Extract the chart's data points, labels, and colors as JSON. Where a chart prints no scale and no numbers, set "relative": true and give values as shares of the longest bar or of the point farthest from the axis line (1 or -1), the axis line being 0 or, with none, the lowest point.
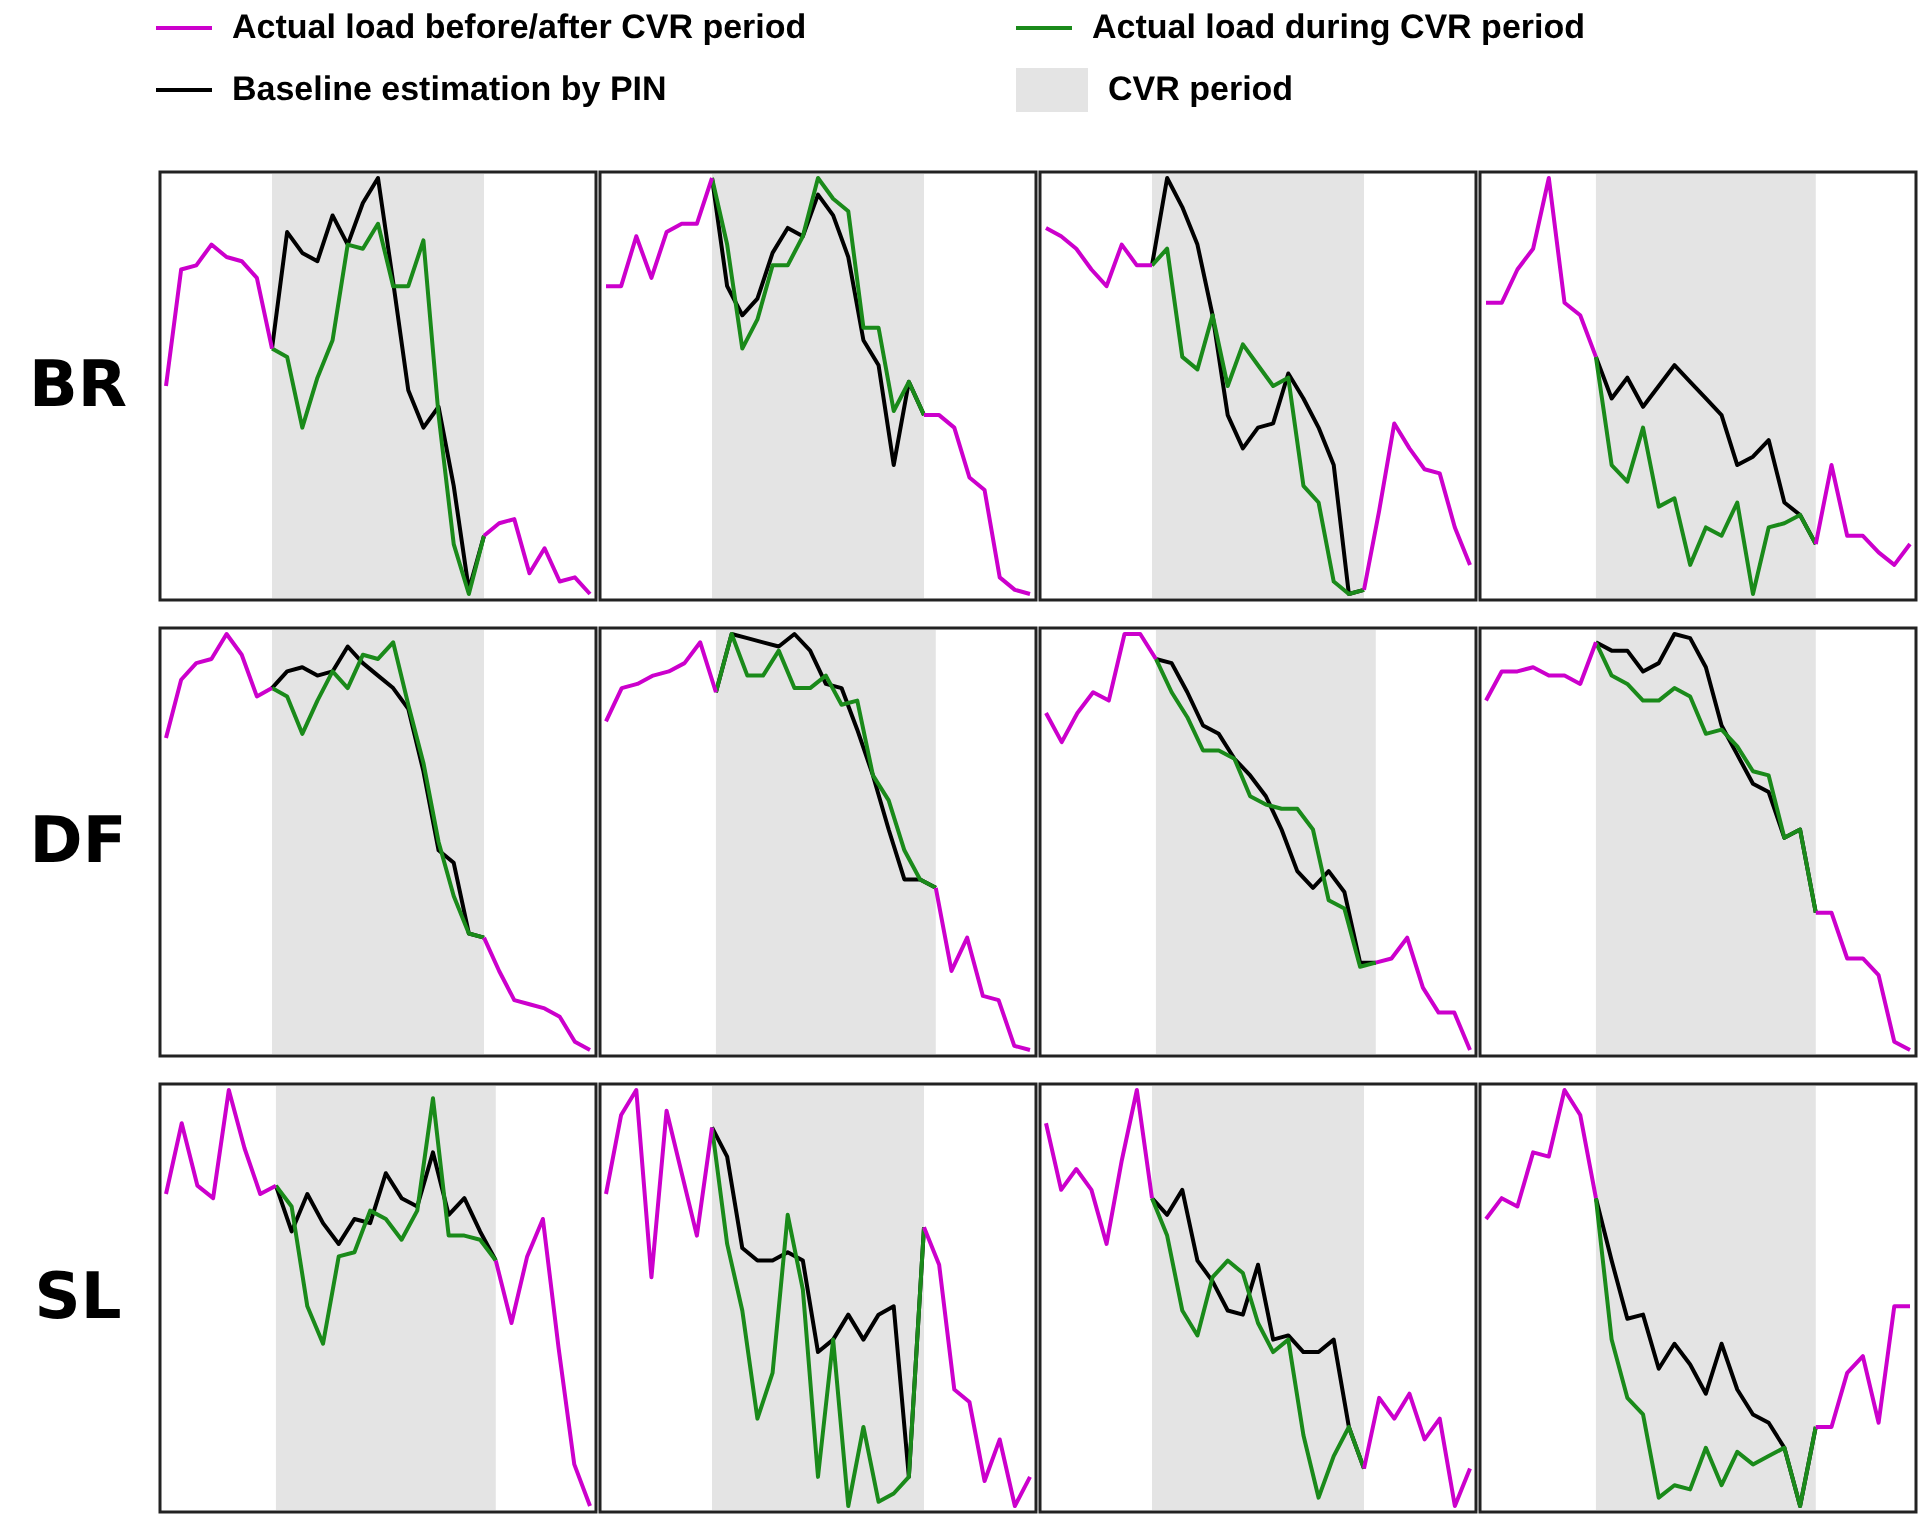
{
  "chart_data": [
    {
      "type": "line",
      "relative": true,
      "tick_labels": false,
      "marker": "none",
      "legend": "top",
      "ylabel": "BR",
      "annotations": [
        "CVR period"
      ],
      "categories": [
        null,
        null,
        null,
        null,
        null,
        null,
        null,
        null,
        null,
        null,
        null,
        null,
        null,
        null,
        null,
        null,
        null,
        null,
        null,
        null,
        null,
        null,
        null,
        null,
        null,
        null,
        null,
        null,
        null
      ],
      "series": [
        {
          "name": "Actual load before/after CVR period",
          "color": "#cc00cc",
          "values": [
            0.5,
            0.78,
            0.79,
            0.84,
            0.81,
            0.8,
            0.76,
            0.59,
            null,
            null,
            null,
            null,
            null,
            null,
            null,
            null,
            null,
            null,
            null,
            null,
            null,
            0.14,
            0.17,
            0.18,
            0.05,
            0.11,
            0.03,
            0.04,
            0
          ]
        },
        {
          "name": "Actual load during CVR period",
          "color": "#1a8a1a",
          "values": [
            null,
            null,
            null,
            null,
            null,
            null,
            null,
            0.59,
            0.57,
            0.4,
            0.52,
            0.61,
            0.84,
            0.83,
            0.89,
            0.74,
            0.74,
            0.85,
            0.43,
            0.12,
            0,
            0.14,
            null,
            null,
            null,
            null,
            null,
            null,
            null
          ]
        },
        {
          "name": "Baseline estimation by PIN",
          "color": "#000000",
          "values": [
            null,
            null,
            null,
            null,
            null,
            null,
            null,
            0.59,
            0.87,
            0.82,
            0.8,
            0.91,
            0.84,
            0.94,
            1,
            0.75,
            0.49,
            0.4,
            0.45,
            0.26,
            0.01,
            0.14,
            null,
            null,
            null,
            null,
            null,
            null,
            null
          ]
        }
      ]
    },
    {
      "type": "line",
      "relative": true,
      "tick_labels": false,
      "marker": "none",
      "categories": [
        null,
        null,
        null,
        null,
        null,
        null,
        null,
        null,
        null,
        null,
        null,
        null,
        null,
        null,
        null,
        null,
        null,
        null,
        null,
        null,
        null,
        null,
        null,
        null,
        null,
        null,
        null,
        null,
        null
      ],
      "series": [
        {
          "color": "#cc00cc",
          "values": [
            0.74,
            0.74,
            0.86,
            0.76,
            0.87,
            0.89,
            0.89,
            1,
            null,
            null,
            null,
            null,
            null,
            null,
            null,
            null,
            null,
            null,
            null,
            null,
            null,
            0.43,
            0.43,
            0.4,
            0.28,
            0.25,
            0.04,
            0.01,
            0
          ]
        },
        {
          "color": "#1a8a1a",
          "values": [
            null,
            null,
            null,
            null,
            null,
            null,
            null,
            1,
            0.84,
            0.59,
            0.66,
            0.79,
            0.79,
            0.86,
            1,
            0.95,
            0.92,
            0.64,
            0.64,
            0.44,
            0.51,
            0.43,
            null,
            null,
            null,
            null,
            null,
            null,
            null
          ]
        },
        {
          "color": "#000000",
          "values": [
            null,
            null,
            null,
            null,
            null,
            null,
            null,
            1,
            0.74,
            0.67,
            0.71,
            0.82,
            0.88,
            0.86,
            0.96,
            0.91,
            0.81,
            0.61,
            0.55,
            0.31,
            0.51,
            0.43,
            null,
            null,
            null,
            null,
            null,
            null,
            null
          ]
        }
      ]
    },
    {
      "type": "line",
      "relative": true,
      "tick_labels": false,
      "marker": "none",
      "categories": [
        null,
        null,
        null,
        null,
        null,
        null,
        null,
        null,
        null,
        null,
        null,
        null,
        null,
        null,
        null,
        null,
        null,
        null,
        null,
        null,
        null,
        null,
        null,
        null,
        null,
        null,
        null,
        null,
        null
      ],
      "series": [
        {
          "color": "#cc00cc",
          "values": [
            0.88,
            0.86,
            0.83,
            0.78,
            0.74,
            0.84,
            0.79,
            0.79,
            null,
            null,
            null,
            null,
            null,
            null,
            null,
            null,
            null,
            null,
            null,
            null,
            null,
            0.01,
            0.2,
            0.41,
            0.35,
            0.3,
            0.29,
            0.16,
            0.07
          ]
        },
        {
          "color": "#1a8a1a",
          "values": [
            null,
            null,
            null,
            null,
            null,
            null,
            null,
            0.79,
            0.83,
            0.57,
            0.54,
            0.67,
            0.5,
            0.6,
            0.55,
            0.5,
            0.52,
            0.26,
            0.22,
            0.03,
            0,
            0.01,
            null,
            null,
            null,
            null,
            null,
            null,
            null
          ]
        },
        {
          "color": "#000000",
          "values": [
            null,
            null,
            null,
            null,
            null,
            null,
            null,
            0.79,
            1,
            0.93,
            0.84,
            0.67,
            0.43,
            0.35,
            0.4,
            0.41,
            0.53,
            0.47,
            0.4,
            0.31,
            0,
            0.01,
            null,
            null,
            null,
            null,
            null,
            null,
            null
          ]
        }
      ]
    },
    {
      "type": "line",
      "relative": true,
      "tick_labels": false,
      "marker": "none",
      "categories": [
        null,
        null,
        null,
        null,
        null,
        null,
        null,
        null,
        null,
        null,
        null,
        null,
        null,
        null,
        null,
        null,
        null,
        null,
        null,
        null,
        null,
        null,
        null,
        null,
        null,
        null,
        null,
        null
      ],
      "series": [
        {
          "color": "#cc00cc",
          "values": [
            0.7,
            0.7,
            0.78,
            0.83,
            1,
            0.7,
            0.67,
            0.57,
            null,
            null,
            null,
            null,
            null,
            null,
            null,
            null,
            null,
            null,
            null,
            null,
            null,
            0.12,
            0.31,
            0.14,
            0.14,
            0.1,
            0.07,
            0.12
          ]
        },
        {
          "color": "#1a8a1a",
          "values": [
            null,
            null,
            null,
            null,
            null,
            null,
            null,
            0.57,
            0.31,
            0.27,
            0.4,
            0.21,
            0.23,
            0.07,
            0.16,
            0.14,
            0.22,
            0,
            0.16,
            0.17,
            0.19,
            0.12,
            null,
            null,
            null,
            null,
            null,
            null
          ]
        },
        {
          "color": "#000000",
          "values": [
            null,
            null,
            null,
            null,
            null,
            null,
            null,
            0.57,
            0.47,
            0.52,
            0.45,
            0.5,
            0.55,
            0.51,
            0.47,
            0.43,
            0.31,
            0.33,
            0.37,
            0.22,
            0.19,
            0.12,
            null,
            null,
            null,
            null,
            null,
            null
          ]
        }
      ]
    },
    {
      "type": "line",
      "relative": true,
      "tick_labels": false,
      "marker": "none",
      "ylabel": "DF",
      "categories": [
        null,
        null,
        null,
        null,
        null,
        null,
        null,
        null,
        null,
        null,
        null,
        null,
        null,
        null,
        null,
        null,
        null,
        null,
        null,
        null,
        null,
        null,
        null,
        null,
        null,
        null,
        null,
        null,
        null
      ],
      "series": [
        {
          "color": "#cc00cc",
          "values": [
            0.75,
            0.89,
            0.93,
            0.94,
            1,
            0.95,
            0.85,
            0.87,
            null,
            null,
            null,
            null,
            null,
            null,
            null,
            null,
            null,
            null,
            null,
            null,
            null,
            0.27,
            0.19,
            0.12,
            0.11,
            0.1,
            0.08,
            0.02,
            0
          ]
        },
        {
          "color": "#1a8a1a",
          "values": [
            null,
            null,
            null,
            null,
            null,
            null,
            null,
            0.87,
            0.85,
            0.76,
            0.84,
            0.91,
            0.87,
            0.95,
            0.94,
            0.98,
            0.83,
            0.69,
            0.5,
            0.37,
            0.28,
            0.27,
            null,
            null,
            null,
            null,
            null,
            null,
            null
          ]
        },
        {
          "color": "#000000",
          "values": [
            null,
            null,
            null,
            null,
            null,
            null,
            null,
            0.87,
            0.91,
            0.92,
            0.9,
            0.91,
            0.97,
            0.93,
            0.9,
            0.87,
            0.82,
            0.67,
            0.48,
            0.45,
            0.28,
            0.27,
            null,
            null,
            null,
            null,
            null,
            null,
            null
          ]
        }
      ]
    },
    {
      "type": "line",
      "relative": true,
      "tick_labels": false,
      "marker": "none",
      "categories": [
        null,
        null,
        null,
        null,
        null,
        null,
        null,
        null,
        null,
        null,
        null,
        null,
        null,
        null,
        null,
        null,
        null,
        null,
        null,
        null,
        null,
        null,
        null,
        null,
        null,
        null,
        null,
        null
      ],
      "series": [
        {
          "color": "#cc00cc",
          "values": [
            0.79,
            0.87,
            0.88,
            0.9,
            0.91,
            0.93,
            0.98,
            0.86,
            null,
            null,
            null,
            null,
            null,
            null,
            null,
            null,
            null,
            null,
            null,
            null,
            null,
            0.39,
            0.19,
            0.27,
            0.13,
            0.12,
            0.01,
            0
          ]
        },
        {
          "color": "#1a8a1a",
          "values": [
            null,
            null,
            null,
            null,
            null,
            null,
            null,
            0.86,
            1,
            0.9,
            0.9,
            0.96,
            0.87,
            0.87,
            0.9,
            0.83,
            0.84,
            0.66,
            0.6,
            0.48,
            0.41,
            0.39,
            null,
            null,
            null,
            null,
            null,
            null
          ]
        },
        {
          "color": "#000000",
          "values": [
            null,
            null,
            null,
            null,
            null,
            null,
            null,
            0.86,
            1,
            0.99,
            0.98,
            0.97,
            1,
            0.96,
            0.88,
            0.87,
            0.77,
            0.66,
            0.53,
            0.41,
            0.41,
            0.39,
            null,
            null,
            null,
            null,
            null,
            null
          ]
        }
      ]
    },
    {
      "type": "line",
      "relative": true,
      "tick_labels": false,
      "marker": "none",
      "categories": [
        null,
        null,
        null,
        null,
        null,
        null,
        null,
        null,
        null,
        null,
        null,
        null,
        null,
        null,
        null,
        null,
        null,
        null,
        null,
        null,
        null,
        null,
        null,
        null,
        null,
        null,
        null,
        null
      ],
      "series": [
        {
          "color": "#cc00cc",
          "values": [
            0.81,
            0.74,
            0.81,
            0.86,
            0.84,
            1,
            1,
            0.94,
            null,
            null,
            null,
            null,
            null,
            null,
            null,
            null,
            null,
            null,
            null,
            null,
            null,
            0.21,
            0.22,
            0.27,
            0.15,
            0.09,
            0.09,
            0
          ]
        },
        {
          "color": "#1a8a1a",
          "values": [
            null,
            null,
            null,
            null,
            null,
            null,
            null,
            0.94,
            0.86,
            0.8,
            0.72,
            0.72,
            0.7,
            0.61,
            0.59,
            0.58,
            0.58,
            0.53,
            0.36,
            0.34,
            0.2,
            0.21,
            null,
            null,
            null,
            null,
            null,
            null
          ]
        },
        {
          "color": "#000000",
          "values": [
            null,
            null,
            null,
            null,
            null,
            null,
            null,
            0.94,
            0.93,
            0.86,
            0.78,
            0.76,
            0.7,
            0.66,
            0.61,
            0.53,
            0.43,
            0.39,
            0.43,
            0.38,
            0.21,
            0.21,
            null,
            null,
            null,
            null,
            null,
            null
          ]
        }
      ]
    },
    {
      "type": "line",
      "relative": true,
      "tick_labels": false,
      "marker": "none",
      "categories": [
        null,
        null,
        null,
        null,
        null,
        null,
        null,
        null,
        null,
        null,
        null,
        null,
        null,
        null,
        null,
        null,
        null,
        null,
        null,
        null,
        null,
        null,
        null,
        null,
        null,
        null,
        null,
        null
      ],
      "series": [
        {
          "color": "#cc00cc",
          "values": [
            0.84,
            0.91,
            0.91,
            0.92,
            0.9,
            0.9,
            0.88,
            0.98,
            null,
            null,
            null,
            null,
            null,
            null,
            null,
            null,
            null,
            null,
            null,
            null,
            null,
            0.33,
            0.33,
            0.22,
            0.22,
            0.18,
            0.02,
            0
          ]
        },
        {
          "color": "#1a8a1a",
          "values": [
            null,
            null,
            null,
            null,
            null,
            null,
            null,
            0.98,
            0.9,
            0.88,
            0.84,
            0.84,
            0.87,
            0.85,
            0.76,
            0.77,
            0.73,
            0.67,
            0.66,
            0.51,
            0.53,
            0.33,
            null,
            null,
            null,
            null,
            null,
            null
          ]
        },
        {
          "color": "#000000",
          "values": [
            null,
            null,
            null,
            null,
            null,
            null,
            null,
            0.98,
            0.96,
            0.96,
            0.91,
            0.93,
            1,
            0.99,
            0.92,
            0.78,
            0.71,
            0.64,
            0.62,
            0.51,
            0.53,
            0.33,
            null,
            null,
            null,
            null,
            null,
            null
          ]
        }
      ]
    },
    {
      "type": "line",
      "relative": true,
      "tick_labels": false,
      "marker": "none",
      "ylabel": "SL",
      "categories": [
        null,
        null,
        null,
        null,
        null,
        null,
        null,
        null,
        null,
        null,
        null,
        null,
        null,
        null,
        null,
        null,
        null,
        null,
        null,
        null,
        null,
        null,
        null,
        null,
        null,
        null,
        null,
        null
      ],
      "series": [
        {
          "color": "#cc00cc",
          "values": [
            0.75,
            0.92,
            0.77,
            0.74,
            1,
            0.86,
            0.75,
            0.77,
            null,
            null,
            null,
            null,
            null,
            null,
            null,
            null,
            null,
            null,
            null,
            null,
            null,
            0.59,
            0.44,
            0.6,
            0.69,
            0.38,
            0.1,
            0
          ]
        },
        {
          "color": "#1a8a1a",
          "values": [
            null,
            null,
            null,
            null,
            null,
            null,
            null,
            0.77,
            0.72,
            0.48,
            0.39,
            0.6,
            0.61,
            0.71,
            0.69,
            0.64,
            0.71,
            0.98,
            0.65,
            0.65,
            0.64,
            0.59,
            null,
            null,
            null,
            null,
            null,
            null
          ]
        },
        {
          "color": "#000000",
          "values": [
            null,
            null,
            null,
            null,
            null,
            null,
            null,
            0.77,
            0.66,
            0.75,
            0.68,
            0.63,
            0.69,
            0.68,
            0.8,
            0.74,
            0.72,
            0.85,
            0.7,
            0.74,
            0.66,
            0.59,
            null,
            null,
            null,
            null,
            null,
            null
          ]
        }
      ]
    },
    {
      "type": "line",
      "relative": true,
      "tick_labels": false,
      "marker": "none",
      "categories": [
        null,
        null,
        null,
        null,
        null,
        null,
        null,
        null,
        null,
        null,
        null,
        null,
        null,
        null,
        null,
        null,
        null,
        null,
        null,
        null,
        null,
        null,
        null,
        null,
        null,
        null,
        null,
        null,
        null
      ],
      "series": [
        {
          "color": "#cc00cc",
          "values": [
            0.75,
            0.94,
            1,
            0.55,
            0.95,
            0.8,
            0.65,
            0.91,
            null,
            null,
            null,
            null,
            null,
            null,
            null,
            null,
            null,
            null,
            null,
            null,
            null,
            0.67,
            0.58,
            0.28,
            0.25,
            0.06,
            0.16,
            0,
            0.07
          ]
        },
        {
          "color": "#1a8a1a",
          "values": [
            null,
            null,
            null,
            null,
            null,
            null,
            null,
            0.91,
            0.63,
            0.47,
            0.21,
            0.32,
            0.7,
            0.52,
            0.07,
            0.4,
            0,
            0.19,
            0.01,
            0.03,
            0.07,
            0.67,
            null,
            null,
            null,
            null,
            null,
            null,
            null
          ]
        },
        {
          "color": "#000000",
          "values": [
            null,
            null,
            null,
            null,
            null,
            null,
            null,
            0.91,
            0.84,
            0.62,
            0.59,
            0.59,
            0.61,
            0.59,
            0.37,
            0.4,
            0.46,
            0.4,
            0.46,
            0.48,
            0.07,
            0.67,
            null,
            null,
            null,
            null,
            null,
            null,
            null
          ]
        }
      ]
    },
    {
      "type": "line",
      "relative": true,
      "tick_labels": false,
      "marker": "none",
      "categories": [
        null,
        null,
        null,
        null,
        null,
        null,
        null,
        null,
        null,
        null,
        null,
        null,
        null,
        null,
        null,
        null,
        null,
        null,
        null,
        null,
        null,
        null,
        null,
        null,
        null,
        null,
        null,
        null,
        null
      ],
      "series": [
        {
          "color": "#cc00cc",
          "values": [
            0.92,
            0.76,
            0.81,
            0.76,
            0.63,
            0.83,
            1,
            0.74,
            null,
            null,
            null,
            null,
            null,
            null,
            null,
            null,
            null,
            null,
            null,
            null,
            null,
            0.09,
            0.26,
            0.21,
            0.27,
            0.16,
            0.21,
            0,
            0.09
          ]
        },
        {
          "color": "#1a8a1a",
          "values": [
            null,
            null,
            null,
            null,
            null,
            null,
            null,
            0.74,
            0.65,
            0.47,
            0.41,
            0.55,
            0.59,
            0.56,
            0.44,
            0.37,
            0.4,
            0.17,
            0.02,
            0.12,
            0.19,
            0.09,
            null,
            null,
            null,
            null,
            null,
            null,
            null
          ]
        },
        {
          "color": "#000000",
          "values": [
            null,
            null,
            null,
            null,
            null,
            null,
            null,
            0.74,
            0.7,
            0.76,
            0.59,
            0.54,
            0.47,
            0.46,
            0.58,
            0.4,
            0.41,
            0.37,
            0.37,
            0.4,
            0.19,
            0.09,
            null,
            null,
            null,
            null,
            null,
            null,
            null
          ]
        }
      ]
    },
    {
      "type": "line",
      "relative": true,
      "tick_labels": false,
      "marker": "none",
      "categories": [
        null,
        null,
        null,
        null,
        null,
        null,
        null,
        null,
        null,
        null,
        null,
        null,
        null,
        null,
        null,
        null,
        null,
        null,
        null,
        null,
        null,
        null,
        null,
        null,
        null,
        null,
        null,
        null
      ],
      "series": [
        {
          "color": "#cc00cc",
          "values": [
            0.69,
            0.74,
            0.72,
            0.85,
            0.84,
            1,
            0.94,
            0.74,
            null,
            null,
            null,
            null,
            null,
            null,
            null,
            null,
            null,
            null,
            null,
            null,
            null,
            0.19,
            0.19,
            0.32,
            0.36,
            0.2,
            0.48,
            0.48
          ]
        },
        {
          "color": "#1a8a1a",
          "values": [
            null,
            null,
            null,
            null,
            null,
            null,
            null,
            0.74,
            0.4,
            0.26,
            0.22,
            0.02,
            0.05,
            0.04,
            0.14,
            0.05,
            0.13,
            0.1,
            0.12,
            0.14,
            0,
            0.19,
            null,
            null,
            null,
            null,
            null,
            null
          ]
        },
        {
          "color": "#000000",
          "values": [
            null,
            null,
            null,
            null,
            null,
            null,
            null,
            0.74,
            0.59,
            0.45,
            0.46,
            0.33,
            0.39,
            0.34,
            0.27,
            0.39,
            0.28,
            0.22,
            0.2,
            0.14,
            0,
            0.19,
            null,
            null,
            null,
            null,
            null,
            null
          ]
        }
      ]
    }
  ]
}
